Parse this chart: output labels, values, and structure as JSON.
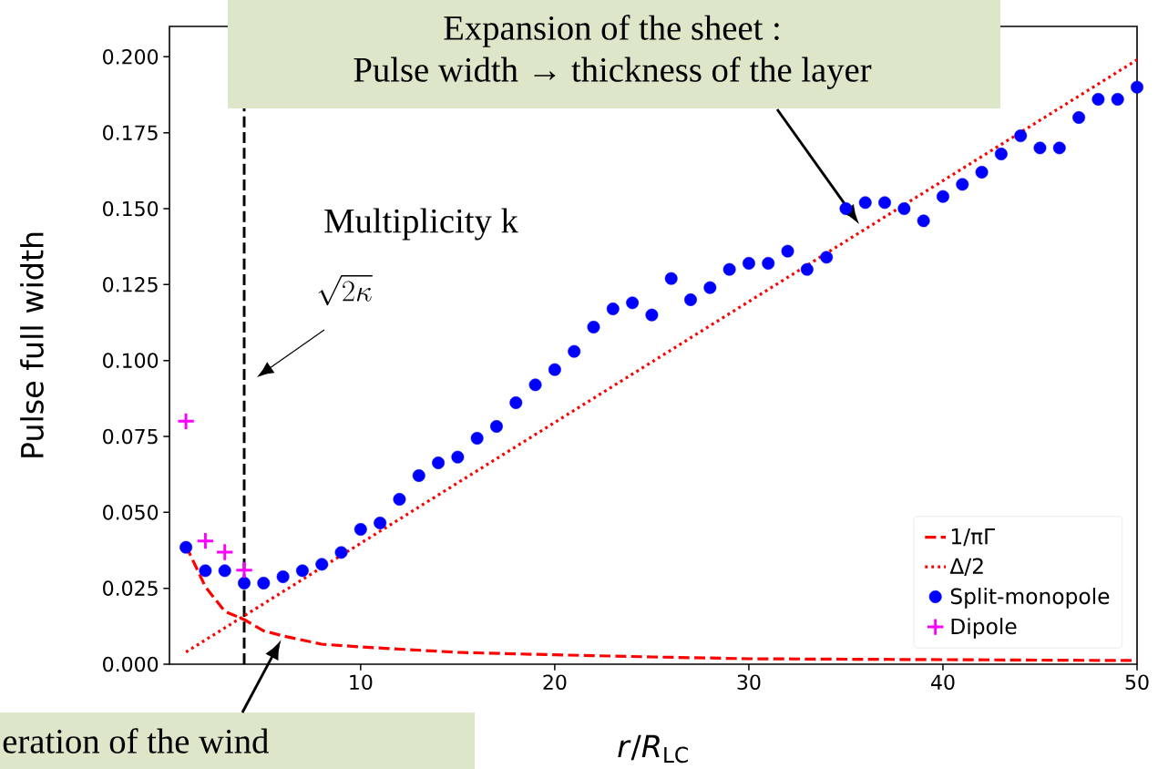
{
  "chart_data": {
    "type": "line",
    "xlabel": "*r*/*R*$_{LC}$",
    "ylabel": "Pulse full width",
    "xlim": [
      0.15,
      50
    ],
    "ylim": [
      0,
      0.21
    ],
    "xticks": [
      10,
      20,
      30,
      40,
      50
    ],
    "yticks": [
      {
        "value": 0,
        "label": "0.000"
      },
      {
        "value": 0.025,
        "label": "0.025"
      },
      {
        "value": 0.05,
        "label": "0.050"
      },
      {
        "value": 0.075,
        "label": "0.075"
      },
      {
        "value": 0.1,
        "label": "0.100"
      },
      {
        "value": 0.125,
        "label": "0.125"
      },
      {
        "value": 0.15,
        "label": "0.150"
      },
      {
        "value": 0.175,
        "label": "0.175"
      },
      {
        "value": 0.2,
        "label": "0.200"
      }
    ],
    "legend": "bottom right",
    "grid": false,
    "series": [
      {
        "name": "1/πΓ",
        "color": "#ff0000",
        "line_style": "dashed",
        "x": [
          1,
          2,
          3,
          4,
          5,
          6,
          8,
          10,
          15,
          20,
          25,
          30,
          40,
          50
        ],
        "values": [
          0.039,
          0.0255,
          0.0174,
          0.0147,
          0.011,
          0.0093,
          0.0066,
          0.0057,
          0.0039,
          0.0031,
          0.0024,
          0.0018,
          0.0015,
          0.0012
        ]
      },
      {
        "name": "Δ/2",
        "color": "#ff0000",
        "line_style": "dotted",
        "x": [
          1,
          50
        ],
        "values": [
          0.004,
          0.199
        ]
      },
      {
        "name": "Split-monopole",
        "type": "scatter",
        "color": "#0000ff",
        "marker": "circle",
        "x": [
          1,
          2,
          3,
          4,
          5,
          6,
          7,
          8,
          9,
          10,
          11,
          12,
          13,
          14,
          15,
          16,
          17,
          18,
          19,
          20,
          21,
          22,
          23,
          24,
          25,
          26,
          27,
          28,
          29,
          30,
          31,
          32,
          33,
          34,
          35,
          36,
          37,
          38,
          39,
          40,
          41,
          42,
          43,
          44,
          45,
          46,
          47,
          48,
          49,
          50
        ],
        "values": [
          0.0385,
          0.0308,
          0.0308,
          0.0267,
          0.0267,
          0.0288,
          0.0308,
          0.0329,
          0.0368,
          0.0444,
          0.0465,
          0.0543,
          0.0621,
          0.0663,
          0.0682,
          0.0744,
          0.0783,
          0.0861,
          0.092,
          0.097,
          0.103,
          0.111,
          0.117,
          0.119,
          0.115,
          0.127,
          0.12,
          0.124,
          0.13,
          0.132,
          0.132,
          0.136,
          0.13,
          0.134,
          0.15,
          0.152,
          0.152,
          0.15,
          0.146,
          0.154,
          0.158,
          0.162,
          0.168,
          0.174,
          0.17,
          0.17,
          0.18,
          0.186,
          0.186,
          0.19
        ]
      },
      {
        "name": "Dipole",
        "type": "scatter",
        "color": "#ff00ff",
        "marker": "cross",
        "x": [
          1,
          2,
          3,
          4
        ],
        "values": [
          0.08,
          0.0406,
          0.0369,
          0.031
        ]
      }
    ],
    "ref_lines": [
      {
        "axis": "x",
        "value": 4,
        "color": "#000000",
        "line_style": "dashed"
      }
    ],
    "annotations": [
      "Expansion of the sheet :",
      "Pulse width → thickness of the layer",
      "Multiplicity k",
      "\\sqrt{2\\kappa}",
      {
        "text": "eration of the wind",
        "x": 5.9,
        "y": 0.008
      }
    ]
  }
}
